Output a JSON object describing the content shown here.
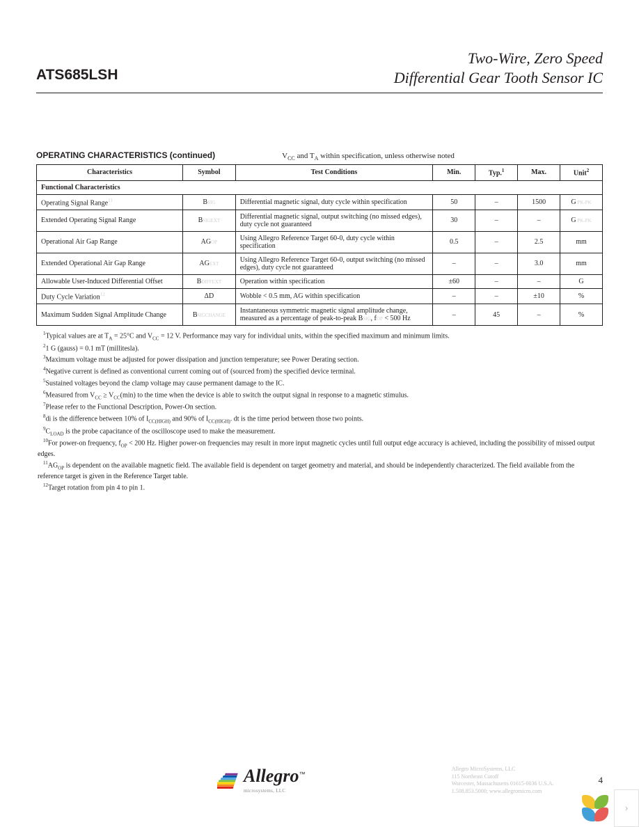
{
  "header": {
    "part_number": "ATS685LSH",
    "title_line1": "Two-Wire, Zero Speed",
    "title_line2": "Differential Gear Tooth Sensor IC"
  },
  "section": {
    "title": "OPERATING CHARACTERISTICS (continued)",
    "condition_html": "V<sub>CC</sub> and T<sub>A</sub> within specification, unless otherwise noted"
  },
  "table": {
    "headers": {
      "char": "Characteristics",
      "symbol": "Symbol",
      "cond": "Test Conditions",
      "min": "Min.",
      "typ": "Typ.",
      "typ_sup": "1",
      "max": "Max.",
      "unit": "Unit",
      "unit_sup": "2"
    },
    "section_label": "Functional Characteristics",
    "rows": [
      {
        "char": "Operating Signal Range",
        "char_sup": "11",
        "symbol_html": "B<span class='subsc'>SIG</span>",
        "cond": "Differential magnetic signal, duty cycle within specification",
        "min": "50",
        "typ": "–",
        "max": "1500",
        "unit_html": "G<span class='subsc'> PK-PK</span>"
      },
      {
        "char": "Extended Operating Signal Range",
        "symbol_html": "B<span class='subsc'>SIGEXT</span>",
        "cond": "Differential magnetic signal, output switching (no missed edges), duty cycle not guaranteed",
        "min": "30",
        "typ": "–",
        "max": "–",
        "unit_html": "G<span class='subsc'> PK-PK</span>"
      },
      {
        "char": "Operational Air Gap Range",
        "symbol_html": "AG<span class='subsc'>OP</span>",
        "cond": "Using Allegro Reference Target 60-0, duty cycle within specification",
        "min": "0.5",
        "typ": "–",
        "max": "2.5",
        "unit_html": "mm"
      },
      {
        "char": "Extended Operational Air Gap Range",
        "symbol_html": "AG<span class='subsc'>EXT</span>",
        "cond": "Using Allegro Reference Target 60-0, output switching (no missed edges), duty cycle not guaranteed",
        "min": "–",
        "typ": "–",
        "max": "3.0",
        "unit_html": "mm"
      },
      {
        "char": "Allowable User-Induced Differential Offset",
        "symbol_html": "B<span class='subsc'>DIFFEXT</span>",
        "cond": "Operation within specification",
        "min": "±60",
        "typ": "–",
        "max": "–",
        "unit_html": "G"
      },
      {
        "char": "Duty Cycle Variation",
        "char_sup": "12",
        "symbol_html": "ΔD",
        "cond": "Wobble < 0.5 mm, AG within specification",
        "min": "–",
        "typ": "–",
        "max": "±10",
        "unit_html": "%"
      },
      {
        "char": "Maximum Sudden Signal Amplitude Change",
        "symbol_html": "B<span class='subsc'>SIGCHANGE</span>",
        "cond": "Instantaneous symmetric magnetic signal amplitude change, measured as a percentage of peak-to-peak B<span class='subsc'>SIG</span>, f<span class='subsc'>OP</span> < 500 Hz",
        "min": "–",
        "typ": "45",
        "max": "–",
        "unit_html": "%"
      }
    ]
  },
  "footnotes": [
    "<sup>1</sup>Typical values are at T<sub>A</sub> = 25°C and V<sub>CC</sub> = 12 V. Performance may vary for individual units, within the specified maximum and minimum limits.",
    "<sup>2</sup>1 G (gauss) = 0.1 mT (millitesla).",
    "<sup>3</sup>Maximum voltage must be adjusted for power dissipation and junction temperature; see Power Derating section.",
    "<sup>4</sup>Negative current is defined as conventional current coming out of (sourced from) the specified device terminal.",
    "<sup>5</sup>Sustained voltages beyond the clamp voltage may cause permanent damage to the IC.",
    "<sup>6</sup>Measured from V<sub>CC</sub> ≥ V<sub>CC</sub>(min) to the time when the device is able to switch the output signal in response to a magnetic stimulus.",
    "<sup>7</sup>Please refer to the Functional Description, Power-On section.",
    "<sup>8</sup>di is the difference between 10% of I<sub>CC(HIGH)</sub> and 90% of I<sub>CC(HIGH)</sub>. dt is the time period between those two points.",
    "<sup>9</sup>C<sub>LOAD</sub> is the probe capacitance of the oscilloscope used to make the measurement.",
    "<sup>10</sup>For power-on frequency, f<sub>OP</sub> < 200 Hz. Higher power-on frequencies may result in more input magnetic cycles until full output edge accuracy is achieved, including the possibility of missed output edges.",
    "<sup>11</sup>AG<sub>OP</sub> is dependent on the available magnetic field. The available field is dependent on target geometry and material, and should be independently characterized. The field available from the reference target is given in the Reference Target table.",
    "<sup>12</sup>Target rotation from pin 4 to pin 1."
  ],
  "footer": {
    "logo_text": "Allegro",
    "logo_tagline": "microsystems, LLC",
    "logo_colors": [
      "#e1261c",
      "#f58220",
      "#ffd400",
      "#7ac143",
      "#4aa3df",
      "#005baa",
      "#7b2e8d"
    ],
    "address": [
      "Allegro MicroSystems, LLC",
      "115 Northeast Cutoff",
      "Worcester, Massachusetts 01615-0036 U.S.A.",
      "1.508.853.5000; www.allegromicro.com"
    ],
    "page_number": "4"
  },
  "corner": {
    "petal_colors": [
      "#f5c431",
      "#7fba3c",
      "#41a0d8",
      "#e85b57"
    ]
  }
}
